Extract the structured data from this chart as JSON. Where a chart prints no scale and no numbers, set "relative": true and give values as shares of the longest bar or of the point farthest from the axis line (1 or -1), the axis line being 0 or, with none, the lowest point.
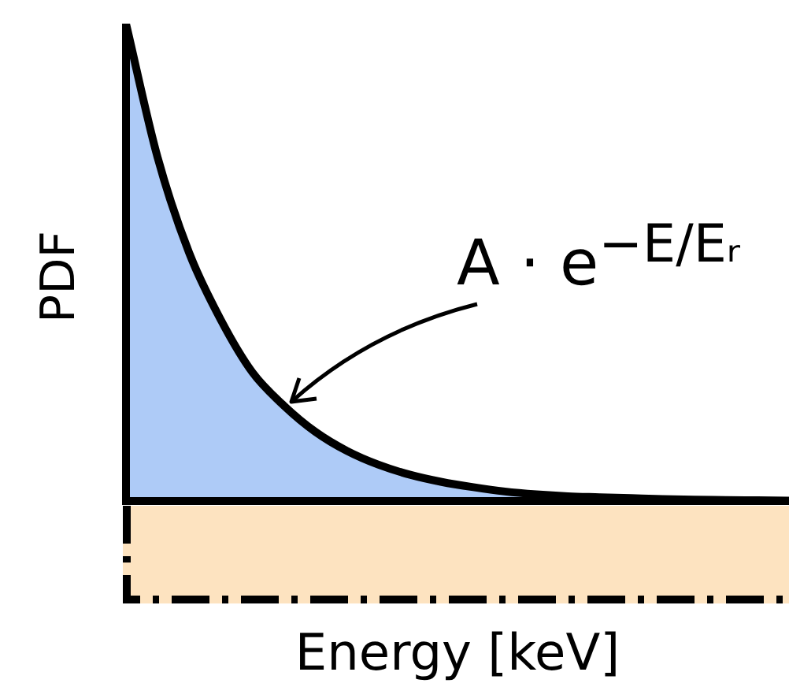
{
  "chart_data": {
    "type": "area",
    "relative": true,
    "xlabel": "Energy [keV]",
    "ylabel": "PDF",
    "annotations": [
      "A · e$^{−E/Eᵣ}$"
    ],
    "categories": [
      null,
      null,
      null,
      null,
      null,
      null,
      null,
      null,
      null,
      null,
      null,
      null,
      null,
      null,
      null,
      null,
      null,
      null,
      null,
      null,
      null,
      null
    ],
    "series": [
      {
        "color": "#aecbf7",
        "values": [
          1,
          0.72,
          0.52,
          0.38,
          0.27,
          0.2,
          0.145,
          0.105,
          0.076,
          0.055,
          0.04,
          0.029,
          0.02,
          0.014,
          0.01,
          0.008,
          0.006,
          0.004,
          0.003,
          0.002,
          0.0015,
          0.001
        ]
      }
    ]
  }
}
